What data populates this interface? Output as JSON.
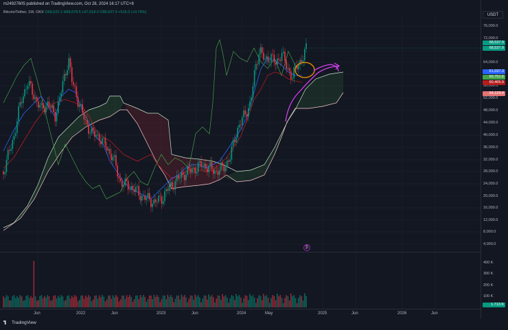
{
  "header": {
    "publish_line": "m24927605 published on TradingView.com, Oct 28, 2024 16:17 UTC+8"
  },
  "legend": {
    "symbol": "Bitcoin/Tether, 1W, OKX",
    "o": "O68,022.2",
    "h": "H68,678.5",
    "l": "L67,618.0",
    "c": "C68,537.9",
    "chg": "+515.0 (+0.76%)"
  },
  "currency": "USDT",
  "price_axis": {
    "labels": [
      "76,000.0",
      "72,000.0",
      "64,000.0",
      "56,000.0",
      "52,000.0",
      "48,000.0",
      "44,000.0",
      "40,000.0",
      "36,000.0",
      "32,000.0",
      "28,000.0",
      "24,000.0",
      "20,000.0",
      "16,000.0",
      "12,000.0",
      "8,000.0",
      "4,000.0"
    ]
  },
  "price_tags": [
    {
      "text": "68,537.9",
      "color": "#089981"
    },
    {
      "text": "68,537.9",
      "color": "#089981"
    },
    {
      "text": "61,037.3",
      "color": "#2962ff"
    },
    {
      "text": "60,751.6",
      "color": "#43a047"
    },
    {
      "text": "60,465.9",
      "color": "#b71c1c"
    },
    {
      "text": "54,129.4",
      "color": "#e57373"
    }
  ],
  "volume_axis": {
    "labels": [
      "400 K",
      "300 K",
      "200 K",
      "100 K"
    ],
    "tag": {
      "text": "1.713 K",
      "color": "#089981"
    }
  },
  "time_axis": {
    "labels": [
      "Jun",
      "2022",
      "Jun",
      "2023",
      "Jun",
      "2024",
      "May",
      "2025",
      "Jun",
      "2026",
      "Jun"
    ]
  },
  "brand": "TradingView",
  "badge": "₿",
  "colors": {
    "up": "#089981",
    "down": "#f23645",
    "tenkan": "#2962ff",
    "kijun": "#b71c1c",
    "lagging": "#43a047",
    "annot_arrow": "#e040fb",
    "annot_circle": "#ff9800"
  }
}
